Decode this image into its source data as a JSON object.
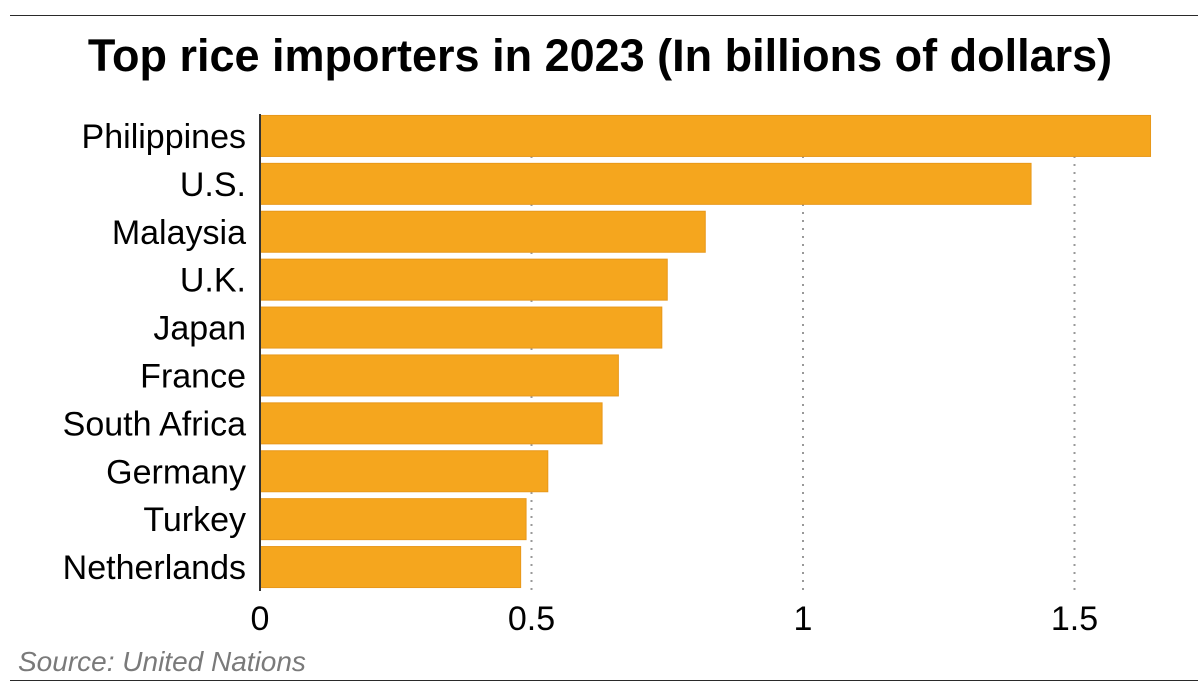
{
  "title": "Top rice importers in 2023 (In billions of dollars)",
  "source": "Source: United Nations",
  "colors": {
    "bar": "#F5A61E",
    "bar_edge": "#E8981A",
    "grid": "#999999",
    "axis": "#333333",
    "text": "#000000",
    "source": "#7a7a7a"
  },
  "chart_data": {
    "type": "bar",
    "orientation": "horizontal",
    "title": "Top rice importers in 2023 (In billions of dollars)",
    "xlabel": "",
    "ylabel": "",
    "categories": [
      "Philippines",
      "U.S.",
      "Malaysia",
      "U.K.",
      "Japan",
      "France",
      "South Africa",
      "Germany",
      "Turkey",
      "Netherlands"
    ],
    "values": [
      1.64,
      1.42,
      0.82,
      0.75,
      0.74,
      0.66,
      0.63,
      0.53,
      0.49,
      0.48
    ],
    "xlim": [
      0,
      1.65
    ],
    "xticks": [
      0,
      0.5,
      1,
      1.5
    ],
    "xtick_labels": [
      "0",
      "0.5",
      "1",
      "1.5"
    ],
    "grid": "vertical dotted"
  }
}
